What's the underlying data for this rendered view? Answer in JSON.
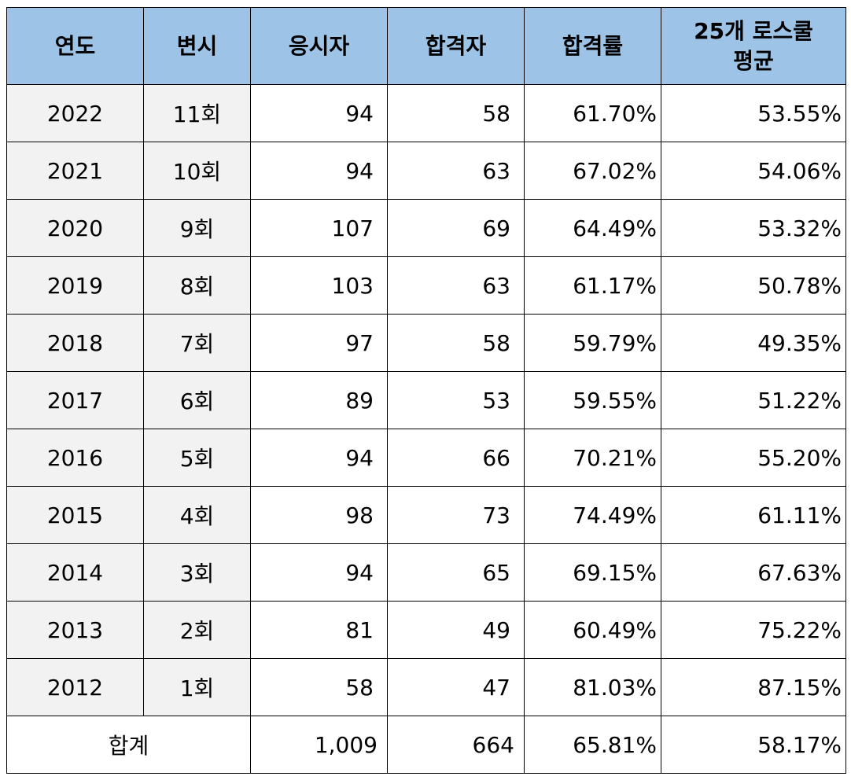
{
  "headers": {
    "year": "연도",
    "round": "변시",
    "applicants": "응시자",
    "passers": "합격자",
    "pass_rate": "합격률",
    "avg_line1": "25개 로스쿨",
    "avg_line2": "평균"
  },
  "rows": [
    {
      "year": "2022",
      "round": "11회",
      "applicants": "94",
      "passers": "58",
      "pass_rate": "61.70%",
      "avg": "53.55%"
    },
    {
      "year": "2021",
      "round": "10회",
      "applicants": "94",
      "passers": "63",
      "pass_rate": "67.02%",
      "avg": "54.06%"
    },
    {
      "year": "2020",
      "round": "9회",
      "applicants": "107",
      "passers": "69",
      "pass_rate": "64.49%",
      "avg": "53.32%"
    },
    {
      "year": "2019",
      "round": "8회",
      "applicants": "103",
      "passers": "63",
      "pass_rate": "61.17%",
      "avg": "50.78%"
    },
    {
      "year": "2018",
      "round": "7회",
      "applicants": "97",
      "passers": "58",
      "pass_rate": "59.79%",
      "avg": "49.35%"
    },
    {
      "year": "2017",
      "round": "6회",
      "applicants": "89",
      "passers": "53",
      "pass_rate": "59.55%",
      "avg": "51.22%"
    },
    {
      "year": "2016",
      "round": "5회",
      "applicants": "94",
      "passers": "66",
      "pass_rate": "70.21%",
      "avg": "55.20%"
    },
    {
      "year": "2015",
      "round": "4회",
      "applicants": "98",
      "passers": "73",
      "pass_rate": "74.49%",
      "avg": "61.11%"
    },
    {
      "year": "2014",
      "round": "3회",
      "applicants": "94",
      "passers": "65",
      "pass_rate": "69.15%",
      "avg": "67.63%"
    },
    {
      "year": "2013",
      "round": "2회",
      "applicants": "81",
      "passers": "49",
      "pass_rate": "60.49%",
      "avg": "75.22%"
    },
    {
      "year": "2012",
      "round": "1회",
      "applicants": "58",
      "passers": "47",
      "pass_rate": "81.03%",
      "avg": "87.15%"
    }
  ],
  "total": {
    "label": "합계",
    "applicants": "1,009",
    "passers": "664",
    "pass_rate": "65.81%",
    "avg": "58.17%"
  },
  "colors": {
    "header_bg": "#9dc3e6",
    "label_col_bg": "#f2f2f2",
    "border": "#000000"
  }
}
